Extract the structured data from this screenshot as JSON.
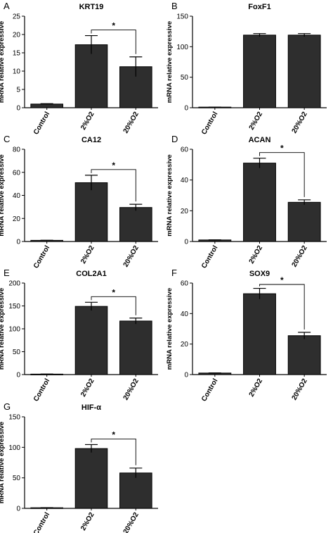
{
  "ylabel": "mRNA relative expressive",
  "chart_data": [
    {
      "type": "bar",
      "panel": "A",
      "title": "KRT19",
      "categories": [
        "Control",
        "2%O2",
        "20%O2"
      ],
      "values": [
        1,
        17.2,
        11.2
      ],
      "errors": [
        0.1,
        2.5,
        2.7
      ],
      "yticks": [
        0,
        5,
        10,
        15,
        20,
        25
      ],
      "ylim": [
        0,
        25
      ],
      "ylabel": "mRNA relative expressive",
      "significance": [
        {
          "from": 1,
          "to": 2,
          "label": "*"
        }
      ]
    },
    {
      "type": "bar",
      "panel": "B",
      "title": "FoxF1",
      "categories": [
        "Control",
        "2%O2",
        "20%O2"
      ],
      "values": [
        1,
        119,
        119
      ],
      "errors": [
        0.1,
        2.5,
        2.5
      ],
      "yticks": [
        0,
        50,
        100,
        150
      ],
      "ylim": [
        0,
        150
      ],
      "ylabel": "mRNA relative expressive",
      "significance": []
    },
    {
      "type": "bar",
      "panel": "C",
      "title": "CA12",
      "categories": [
        "Control",
        "2%O2",
        "20%O2"
      ],
      "values": [
        1,
        51,
        29.5
      ],
      "errors": [
        0.1,
        6.5,
        2.8
      ],
      "yticks": [
        0,
        20,
        40,
        60,
        80
      ],
      "ylim": [
        0,
        80
      ],
      "ylabel": "mRNA relative expressive",
      "significance": [
        {
          "from": 1,
          "to": 2,
          "label": "*"
        }
      ]
    },
    {
      "type": "bar",
      "panel": "D",
      "title": "ACAN",
      "categories": [
        "Control",
        "2%O2",
        "20%O2"
      ],
      "values": [
        1,
        51,
        25.5
      ],
      "errors": [
        0.1,
        3.2,
        1.6
      ],
      "yticks": [
        0,
        20,
        40,
        60
      ],
      "ylim": [
        0,
        60
      ],
      "ylabel": "mRNA relative expressive",
      "significance": [
        {
          "from": 1,
          "to": 2,
          "label": "*"
        }
      ]
    },
    {
      "type": "bar",
      "panel": "E",
      "title": "COL2A1",
      "categories": [
        "Control",
        "2%O2",
        "20%O2"
      ],
      "values": [
        1,
        149,
        117
      ],
      "errors": [
        0.2,
        9,
        6.5
      ],
      "yticks": [
        0,
        50,
        100,
        150,
        200
      ],
      "ylim": [
        0,
        200
      ],
      "ylabel": "mRNA relative expressive",
      "significance": [
        {
          "from": 1,
          "to": 2,
          "label": "*"
        }
      ]
    },
    {
      "type": "bar",
      "panel": "F",
      "title": "SOX9",
      "categories": [
        "Control",
        "2%O2",
        "20%O2"
      ],
      "values": [
        1,
        53,
        25.5
      ],
      "errors": [
        0.1,
        3.5,
        2.2
      ],
      "yticks": [
        0,
        20,
        40,
        60
      ],
      "ylim": [
        0,
        60
      ],
      "ylabel": "mRNA relative expressive",
      "significance": [
        {
          "from": 1,
          "to": 2,
          "label": "*"
        }
      ]
    },
    {
      "type": "bar",
      "panel": "G",
      "title": "HIF-α",
      "categories": [
        "Control",
        "2%O2",
        "20%O2"
      ],
      "values": [
        1,
        98,
        58
      ],
      "errors": [
        0.2,
        6.5,
        8
      ],
      "yticks": [
        0,
        50,
        100,
        150
      ],
      "ylim": [
        0,
        150
      ],
      "ylabel": "mRNA relative expressive",
      "significance": [
        {
          "from": 1,
          "to": 2,
          "label": "*"
        }
      ]
    }
  ],
  "colors": {
    "bar": "#2e2e2e",
    "axis": "#000000",
    "text": "#000000"
  }
}
